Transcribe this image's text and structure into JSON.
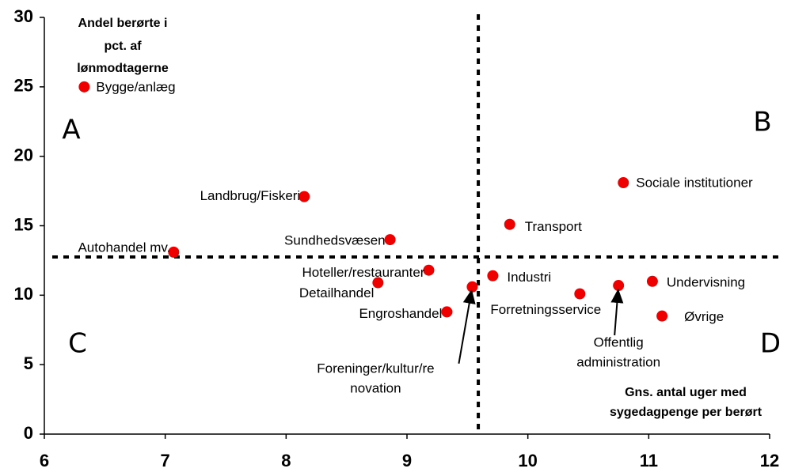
{
  "chart_data": {
    "type": "scatter",
    "xlim": [
      6,
      12
    ],
    "ylim": [
      0,
      30
    ],
    "xticks": [
      6,
      7,
      8,
      9,
      10,
      11,
      12
    ],
    "yticks": [
      0,
      5,
      10,
      15,
      20,
      25,
      30
    ],
    "ylabel": [
      "Andel berørte i",
      "pct. af",
      "lønmodtagerne"
    ],
    "xlabel": [
      "Gns. antal uger med",
      "sygedagpenge per berørt"
    ],
    "quadrants": [
      "A",
      "B",
      "C",
      "D"
    ],
    "vline": 9.59,
    "hline": 12.75,
    "color": "#ee0000",
    "series": [
      {
        "labels": [
          "Bygge/anlæg",
          "Landbrug/Fiskeri",
          "Autohandel mv.",
          "Sundhedsvæsen",
          "Hoteller/restauranter",
          "Detailhandel",
          "Engroshandel",
          [
            "Foreninger/kultur/re",
            "novation"
          ],
          "Industri",
          "Transport",
          "Forretningsservice",
          [
            "Offentlig",
            "administration"
          ],
          "Undervisning",
          "Øvrige",
          "Sociale institutioner"
        ],
        "x": [
          6.33,
          8.15,
          7.07,
          8.86,
          9.18,
          8.76,
          9.33,
          9.54,
          9.71,
          9.85,
          10.43,
          10.75,
          11.03,
          11.11,
          10.79
        ],
        "values": [
          25,
          17.1,
          13.1,
          14,
          11.8,
          10.9,
          8.8,
          10.6,
          11.4,
          15.1,
          10.1,
          10.7,
          11,
          8.5,
          18.1
        ]
      }
    ]
  }
}
